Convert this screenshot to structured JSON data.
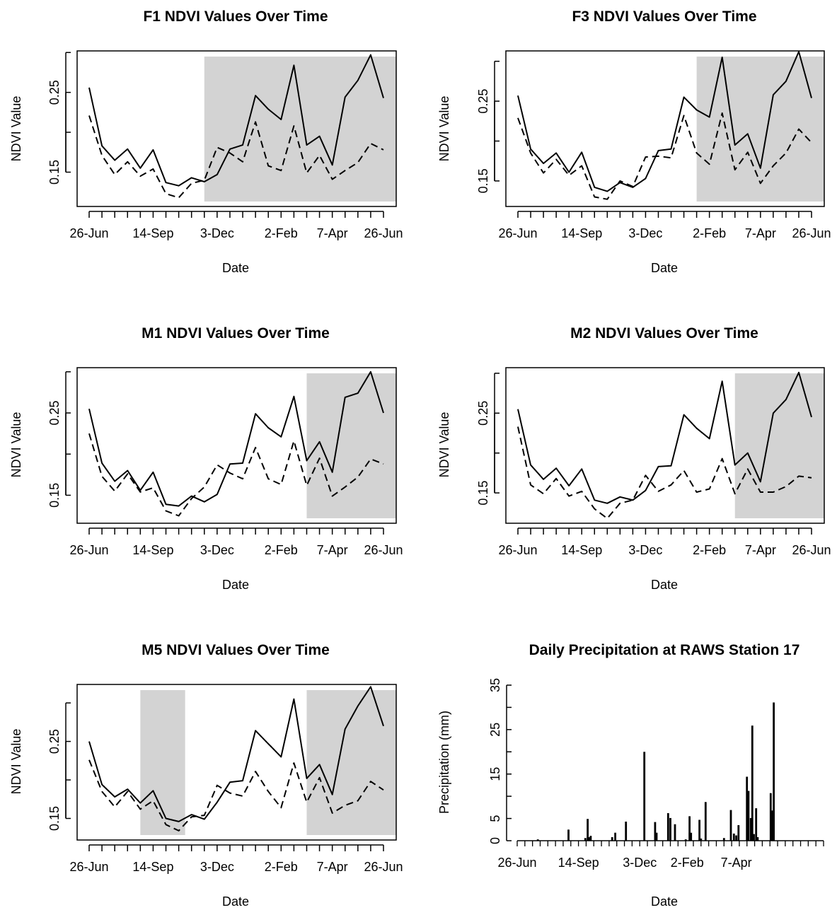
{
  "figure": {
    "background": "#ffffff",
    "shade_color": "#d3d3d3",
    "line_color": "#000000"
  },
  "chart_data": [
    {
      "id": "F1",
      "type": "line",
      "title": "F1 NDVI Values Over Time",
      "xlabel": "Date",
      "ylabel": "NDVI Value",
      "x_tick_labels": [
        "26-Jun",
        "14-Sep",
        "3-Dec",
        "2-Feb",
        "7-Apr",
        "26-Jun"
      ],
      "y_ticks": [
        0.15,
        0.25
      ],
      "ylim": [
        0.107,
        0.302
      ],
      "grid": false,
      "legend": "none",
      "shaded_x_ranges": [
        [
          9,
          24
        ]
      ],
      "series": [
        {
          "style": "solid",
          "values": [
            0.256,
            0.183,
            0.165,
            0.179,
            0.155,
            0.178,
            0.137,
            0.133,
            0.143,
            0.138,
            0.147,
            0.179,
            0.184,
            0.246,
            0.229,
            0.216,
            0.284,
            0.184,
            0.195,
            0.159,
            0.244,
            0.265,
            0.297,
            0.243
          ]
        },
        {
          "style": "dashed",
          "values": [
            0.221,
            0.171,
            0.147,
            0.163,
            0.145,
            0.154,
            0.123,
            0.118,
            0.136,
            0.14,
            0.181,
            0.174,
            0.163,
            0.213,
            0.158,
            0.152,
            0.208,
            0.149,
            0.171,
            0.141,
            0.152,
            0.162,
            0.186,
            0.178
          ]
        }
      ]
    },
    {
      "id": "F3",
      "type": "line",
      "title": "F3 NDVI Values Over Time",
      "xlabel": "Date",
      "ylabel": "NDVI Value",
      "x_tick_labels": [
        "26-Jun",
        "14-Sep",
        "3-Dec",
        "2-Feb",
        "7-Apr",
        "26-Jun"
      ],
      "y_ticks": [
        0.15,
        0.25
      ],
      "ylim": [
        0.118,
        0.313
      ],
      "grid": false,
      "legend": "none",
      "shaded_x_ranges": [
        [
          14,
          24
        ]
      ],
      "series": [
        {
          "style": "solid",
          "values": [
            0.257,
            0.19,
            0.172,
            0.185,
            0.161,
            0.186,
            0.142,
            0.137,
            0.148,
            0.142,
            0.153,
            0.188,
            0.19,
            0.255,
            0.239,
            0.23,
            0.305,
            0.195,
            0.209,
            0.166,
            0.258,
            0.275,
            0.312,
            0.254
          ]
        },
        {
          "style": "dashed",
          "values": [
            0.229,
            0.185,
            0.16,
            0.177,
            0.157,
            0.169,
            0.13,
            0.127,
            0.15,
            0.143,
            0.18,
            0.181,
            0.179,
            0.232,
            0.185,
            0.171,
            0.235,
            0.164,
            0.186,
            0.147,
            0.169,
            0.185,
            0.215,
            0.198
          ]
        }
      ]
    },
    {
      "id": "M1",
      "type": "line",
      "title": "M1 NDVI Values Over Time",
      "xlabel": "Date",
      "ylabel": "NDVI Value",
      "x_tick_labels": [
        "26-Jun",
        "14-Sep",
        "3-Dec",
        "2-Feb",
        "7-Apr",
        "26-Jun"
      ],
      "y_ticks": [
        0.15,
        0.25
      ],
      "ylim": [
        0.116,
        0.305
      ],
      "grid": false,
      "legend": "none",
      "shaded_x_ranges": [
        [
          17,
          24
        ]
      ],
      "series": [
        {
          "style": "solid",
          "values": [
            0.255,
            0.189,
            0.167,
            0.18,
            0.156,
            0.178,
            0.139,
            0.137,
            0.149,
            0.142,
            0.151,
            0.188,
            0.189,
            0.249,
            0.232,
            0.221,
            0.27,
            0.192,
            0.215,
            0.178,
            0.269,
            0.274,
            0.3,
            0.25
          ]
        },
        {
          "style": "dashed",
          "values": [
            0.225,
            0.173,
            0.155,
            0.176,
            0.154,
            0.159,
            0.131,
            0.125,
            0.146,
            0.16,
            0.187,
            0.177,
            0.17,
            0.208,
            0.17,
            0.163,
            0.216,
            0.162,
            0.195,
            0.149,
            0.16,
            0.172,
            0.194,
            0.188
          ]
        }
      ]
    },
    {
      "id": "M2",
      "type": "line",
      "title": "M2 NDVI Values Over Time",
      "xlabel": "Date",
      "ylabel": "NDVI Value",
      "x_tick_labels": [
        "26-Jun",
        "14-Sep",
        "3-Dec",
        "2-Feb",
        "7-Apr",
        "26-Jun"
      ],
      "y_ticks": [
        0.15,
        0.25
      ],
      "ylim": [
        0.112,
        0.307
      ],
      "grid": false,
      "legend": "none",
      "shaded_x_ranges": [
        [
          17,
          24
        ]
      ],
      "series": [
        {
          "style": "solid",
          "values": [
            0.255,
            0.185,
            0.167,
            0.181,
            0.159,
            0.18,
            0.141,
            0.137,
            0.145,
            0.141,
            0.153,
            0.183,
            0.184,
            0.248,
            0.231,
            0.218,
            0.29,
            0.185,
            0.2,
            0.164,
            0.25,
            0.267,
            0.301,
            0.245
          ]
        },
        {
          "style": "dashed",
          "values": [
            0.233,
            0.16,
            0.149,
            0.168,
            0.146,
            0.152,
            0.13,
            0.118,
            0.137,
            0.141,
            0.172,
            0.152,
            0.16,
            0.178,
            0.151,
            0.155,
            0.193,
            0.149,
            0.18,
            0.151,
            0.151,
            0.158,
            0.171,
            0.169
          ]
        }
      ]
    },
    {
      "id": "M5",
      "type": "line",
      "title": "M5 NDVI Values Over Time",
      "xlabel": "Date",
      "ylabel": "NDVI Value",
      "x_tick_labels": [
        "26-Jun",
        "14-Sep",
        "3-Dec",
        "2-Feb",
        "7-Apr",
        "26-Jun"
      ],
      "y_ticks": [
        0.15,
        0.25
      ],
      "ylim": [
        0.122,
        0.324
      ],
      "grid": false,
      "legend": "none",
      "shaded_x_ranges": [
        [
          4,
          7.5
        ],
        [
          17,
          24
        ]
      ],
      "series": [
        {
          "style": "solid",
          "values": [
            0.25,
            0.194,
            0.178,
            0.188,
            0.17,
            0.186,
            0.15,
            0.146,
            0.155,
            0.149,
            0.171,
            0.197,
            0.199,
            0.264,
            0.247,
            0.23,
            0.305,
            0.202,
            0.22,
            0.181,
            0.266,
            0.296,
            0.321,
            0.27
          ]
        },
        {
          "style": "dashed",
          "values": [
            0.226,
            0.185,
            0.165,
            0.185,
            0.162,
            0.173,
            0.142,
            0.134,
            0.152,
            0.154,
            0.193,
            0.183,
            0.179,
            0.211,
            0.185,
            0.164,
            0.222,
            0.171,
            0.203,
            0.157,
            0.167,
            0.173,
            0.198,
            0.187
          ]
        }
      ]
    },
    {
      "id": "precip",
      "type": "bar",
      "title": "Daily Precipitation at RAWS Station 17",
      "xlabel": "Date",
      "ylabel": "Precipitation (mm)",
      "x_tick_labels": [
        "26-Jun",
        "14-Sep",
        "3-Dec",
        "2-Feb",
        "7-Apr"
      ],
      "x_ticks_days": [
        0,
        80,
        160,
        222,
        286
      ],
      "xlim_days": [
        0,
        400
      ],
      "y_ticks": [
        0,
        5,
        15,
        25,
        35
      ],
      "ylim": [
        0,
        35
      ],
      "grid": false,
      "legend": "none",
      "bars": [
        {
          "day": 27,
          "value": 0.3
        },
        {
          "day": 67,
          "value": 2.5
        },
        {
          "day": 89,
          "value": 0.6
        },
        {
          "day": 92,
          "value": 4.9
        },
        {
          "day": 94,
          "value": 0.8
        },
        {
          "day": 96,
          "value": 1.1
        },
        {
          "day": 124,
          "value": 0.8
        },
        {
          "day": 128,
          "value": 1.8
        },
        {
          "day": 142,
          "value": 4.3
        },
        {
          "day": 166,
          "value": 20.0
        },
        {
          "day": 180,
          "value": 4.2
        },
        {
          "day": 182,
          "value": 1.8
        },
        {
          "day": 197,
          "value": 6.2
        },
        {
          "day": 200,
          "value": 5.1
        },
        {
          "day": 206,
          "value": 3.7
        },
        {
          "day": 220,
          "value": 0.3
        },
        {
          "day": 225,
          "value": 5.5
        },
        {
          "day": 227,
          "value": 1.8
        },
        {
          "day": 238,
          "value": 4.7
        },
        {
          "day": 240,
          "value": 0.5
        },
        {
          "day": 246,
          "value": 8.7
        },
        {
          "day": 270,
          "value": 0.6
        },
        {
          "day": 279,
          "value": 6.9
        },
        {
          "day": 283,
          "value": 1.6
        },
        {
          "day": 286,
          "value": 1.2
        },
        {
          "day": 289,
          "value": 3.5
        },
        {
          "day": 300,
          "value": 14.4
        },
        {
          "day": 302,
          "value": 11.2
        },
        {
          "day": 305,
          "value": 5.1
        },
        {
          "day": 307,
          "value": 25.9
        },
        {
          "day": 309,
          "value": 1.5
        },
        {
          "day": 312,
          "value": 7.3
        },
        {
          "day": 314,
          "value": 0.8
        },
        {
          "day": 331,
          "value": 10.7
        },
        {
          "day": 333,
          "value": 6.8
        },
        {
          "day": 335,
          "value": 31.1
        }
      ]
    }
  ]
}
